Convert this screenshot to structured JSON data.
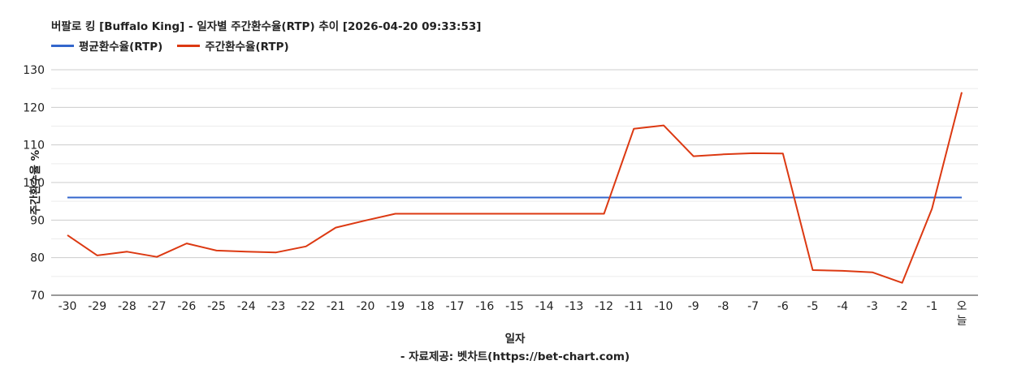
{
  "chart_data": {
    "type": "line",
    "title": "버팔로 킹 [Buffalo King] - 일자별 주간환수율(RTP) 추이 [2026-04-20 09:33:53]",
    "xlabel": "일자",
    "ylabel": "주간환수율 %",
    "source": "- 자료제공: 벳차트(https://bet-chart.com)",
    "categories": [
      "-30",
      "-29",
      "-28",
      "-27",
      "-26",
      "-25",
      "-24",
      "-23",
      "-22",
      "-21",
      "-20",
      "-19",
      "-18",
      "-17",
      "-16",
      "-15",
      "-14",
      "-13",
      "-12",
      "-11",
      "-10",
      "-9",
      "-8",
      "-7",
      "-6",
      "-5",
      "-4",
      "-3",
      "-2",
      "-1",
      "오늘"
    ],
    "series": [
      {
        "name": "평균환수율(RTP)",
        "color": "#3366cc",
        "values": [
          96,
          96,
          96,
          96,
          96,
          96,
          96,
          96,
          96,
          96,
          96,
          96,
          96,
          96,
          96,
          96,
          96,
          96,
          96,
          96,
          96,
          96,
          96,
          96,
          96,
          96,
          96,
          96,
          96,
          96,
          96
        ]
      },
      {
        "name": "주간환수율(RTP)",
        "color": "#dc3912",
        "values": [
          86,
          80.6,
          81.6,
          80.2,
          83.8,
          81.9,
          81.6,
          81.4,
          83,
          88,
          89.9,
          91.7,
          91.7,
          91.7,
          91.7,
          91.7,
          91.7,
          91.7,
          91.7,
          114.3,
          115.2,
          107,
          107.5,
          107.8,
          107.7,
          76.7,
          76.5,
          76.1,
          73.3,
          93,
          124
        ]
      }
    ],
    "ylim": [
      70,
      130
    ],
    "yticks": [
      70,
      80,
      90,
      100,
      110,
      120,
      130
    ],
    "grid": true,
    "legend_position": "top-left"
  }
}
